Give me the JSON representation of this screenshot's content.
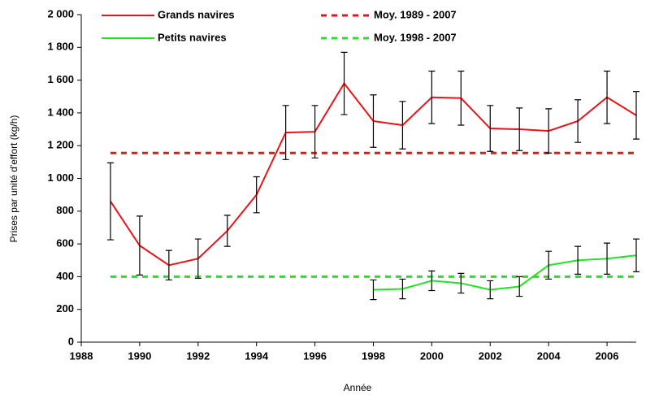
{
  "chart_data": {
    "type": "line",
    "xlabel": "Année",
    "ylabel": "Prises par unité d'effort (kg/h)",
    "x": [
      1989,
      1990,
      1991,
      1992,
      1993,
      1994,
      1995,
      1996,
      1997,
      1998,
      1999,
      2000,
      2001,
      2002,
      2003,
      2004,
      2005,
      2006,
      2007
    ],
    "series": [
      {
        "name": "Grands navires",
        "color": "#e8141a",
        "values": [
          860,
          590,
          470,
          510,
          680,
          900,
          1280,
          1285,
          1580,
          1350,
          1325,
          1495,
          1490,
          1305,
          1300,
          1290,
          1350,
          1495,
          1385
        ],
        "errors": [
          235,
          180,
          90,
          120,
          95,
          110,
          165,
          160,
          190,
          160,
          145,
          160,
          165,
          140,
          130,
          135,
          130,
          160,
          145
        ]
      },
      {
        "name": "Petits navires",
        "color": "#22e322",
        "values": [
          null,
          null,
          null,
          null,
          null,
          null,
          null,
          null,
          null,
          320,
          325,
          375,
          360,
          320,
          340,
          470,
          500,
          510,
          530
        ],
        "errors": [
          null,
          null,
          null,
          null,
          null,
          null,
          null,
          null,
          null,
          60,
          60,
          60,
          60,
          55,
          60,
          85,
          85,
          95,
          100
        ]
      }
    ],
    "reference_lines": [
      {
        "name": "Moy. 1989 - 2007",
        "value": 1155,
        "color": "#e8141a"
      },
      {
        "name": "Moy. 1998 - 2007",
        "value": 400,
        "color": "#22e322"
      }
    ],
    "error_color": "#000000",
    "xlim": [
      1988,
      2007
    ],
    "xticks": [
      1988,
      1990,
      1992,
      1994,
      1996,
      1998,
      2000,
      2002,
      2004,
      2006
    ],
    "ylim": [
      0,
      2000
    ],
    "yticks": [
      0,
      200,
      400,
      600,
      800,
      {
        "value": 1000,
        "label": "1 000"
      },
      {
        "value": 1200,
        "label": "1 200"
      },
      {
        "value": 1400,
        "label": "1 400"
      },
      {
        "value": 1600,
        "label": "1 600"
      },
      {
        "value": 1800,
        "label": "1 800"
      },
      {
        "value": 2000,
        "label": "2 000"
      }
    ]
  }
}
